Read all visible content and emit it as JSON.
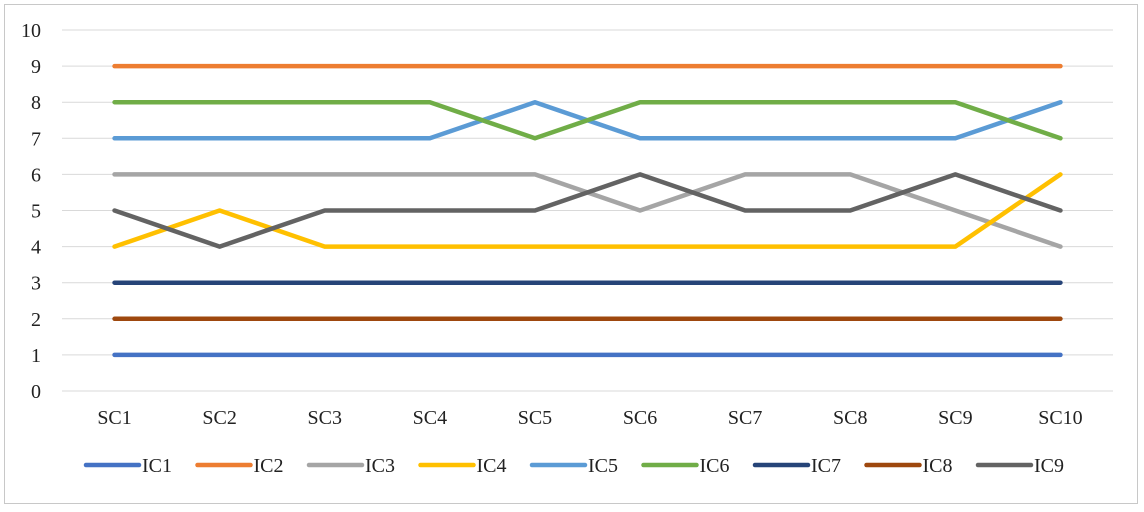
{
  "chart_data": {
    "type": "line",
    "title": "",
    "xlabel": "",
    "ylabel": "",
    "categories": [
      "SC1",
      "SC2",
      "SC3",
      "SC4",
      "SC5",
      "SC6",
      "SC7",
      "SC8",
      "SC9",
      "SC10"
    ],
    "ylim": [
      0,
      10
    ],
    "yticks": [
      "0",
      "1",
      "2",
      "3",
      "4",
      "5",
      "6",
      "7",
      "8",
      "9",
      "10"
    ],
    "grid": true,
    "legend_position": "bottom",
    "series": [
      {
        "name": "IC1",
        "color": "#4472C4",
        "values": [
          1,
          1,
          1,
          1,
          1,
          1,
          1,
          1,
          1,
          1
        ]
      },
      {
        "name": "IC2",
        "color": "#ED7D31",
        "values": [
          9,
          9,
          9,
          9,
          9,
          9,
          9,
          9,
          9,
          9
        ]
      },
      {
        "name": "IC3",
        "color": "#A5A5A5",
        "values": [
          6,
          6,
          6,
          6,
          6,
          5,
          6,
          6,
          5,
          4
        ]
      },
      {
        "name": "IC4",
        "color": "#FFC000",
        "values": [
          4,
          5,
          4,
          4,
          4,
          4,
          4,
          4,
          4,
          6
        ]
      },
      {
        "name": "IC5",
        "color": "#5B9BD5",
        "values": [
          7,
          7,
          7,
          7,
          8,
          7,
          7,
          7,
          7,
          8
        ]
      },
      {
        "name": "IC6",
        "color": "#70AD47",
        "values": [
          8,
          8,
          8,
          8,
          7,
          8,
          8,
          8,
          8,
          7
        ]
      },
      {
        "name": "IC7",
        "color": "#264478",
        "values": [
          3,
          3,
          3,
          3,
          3,
          3,
          3,
          3,
          3,
          3
        ]
      },
      {
        "name": "IC8",
        "color": "#9E480E",
        "values": [
          2,
          2,
          2,
          2,
          2,
          2,
          2,
          2,
          2,
          2
        ]
      },
      {
        "name": "IC9",
        "color": "#636363",
        "values": [
          5,
          4,
          5,
          5,
          5,
          6,
          5,
          5,
          6,
          5
        ]
      }
    ]
  }
}
